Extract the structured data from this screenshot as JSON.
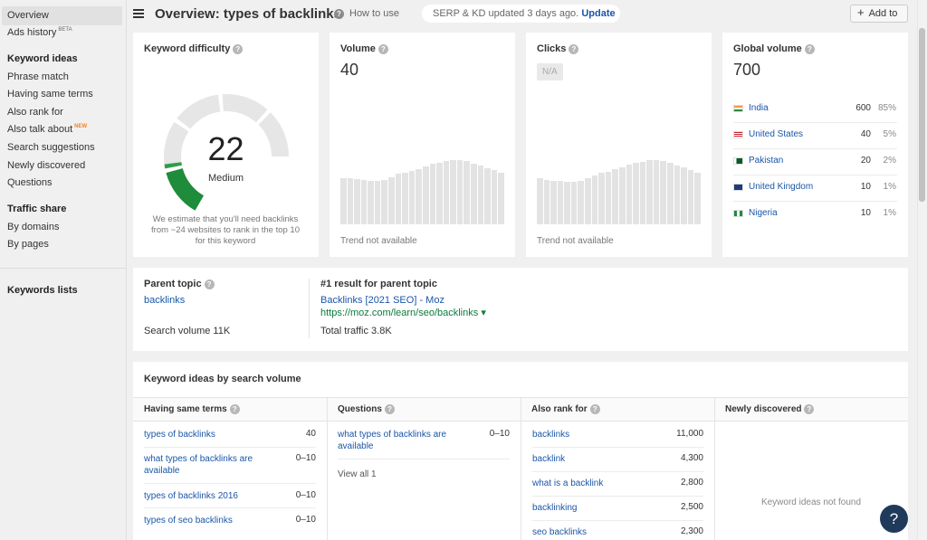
{
  "sidebar": {
    "overview": "Overview",
    "ads_history": "Ads history",
    "ads_history_badge": "BETA",
    "keyword_ideas_head": "Keyword ideas",
    "items": [
      {
        "label": "Phrase match"
      },
      {
        "label": "Having same terms"
      },
      {
        "label": "Also rank for"
      },
      {
        "label": "Also talk about",
        "badge": "NEW"
      },
      {
        "label": "Search suggestions"
      },
      {
        "label": "Newly discovered"
      },
      {
        "label": "Questions"
      }
    ],
    "traffic_share_head": "Traffic share",
    "traffic_items": [
      {
        "label": "By domains"
      },
      {
        "label": "By pages"
      }
    ],
    "keywords_lists": "Keywords lists"
  },
  "header": {
    "title": "Overview: types of backlinks",
    "how_to_use": "How to use",
    "serp_status": "SERP & KD updated 3 days ago.",
    "update_link": "Update",
    "add_to": "Add to"
  },
  "kd": {
    "title": "Keyword difficulty",
    "value": "22",
    "level": "Medium",
    "fraction": 0.22,
    "note": "We estimate that you'll need backlinks from ~24 websites to rank in the top 10 for this keyword",
    "color": "#2e9e48"
  },
  "volume": {
    "title": "Volume",
    "value": "40",
    "trend": "Trend not available",
    "bars": [
      0.62,
      0.62,
      0.61,
      0.6,
      0.58,
      0.58,
      0.6,
      0.63,
      0.68,
      0.7,
      0.72,
      0.74,
      0.78,
      0.82,
      0.83,
      0.85,
      0.87,
      0.86,
      0.85,
      0.82,
      0.79,
      0.76,
      0.73,
      0.7
    ]
  },
  "clicks": {
    "title": "Clicks",
    "value": "N/A",
    "trend": "Trend not available",
    "bars": [
      0.62,
      0.6,
      0.59,
      0.58,
      0.57,
      0.57,
      0.59,
      0.62,
      0.66,
      0.69,
      0.71,
      0.74,
      0.77,
      0.81,
      0.83,
      0.84,
      0.86,
      0.86,
      0.85,
      0.83,
      0.79,
      0.77,
      0.73,
      0.7
    ]
  },
  "global_volume": {
    "title": "Global volume",
    "value": "700",
    "countries": [
      {
        "name": "India",
        "volume": "600",
        "pct": "85%",
        "flag": "india-flag"
      },
      {
        "name": "United States",
        "volume": "40",
        "pct": "5%",
        "flag": "us-flag"
      },
      {
        "name": "Pakistan",
        "volume": "20",
        "pct": "2%",
        "flag": "pakistan-flag"
      },
      {
        "name": "United Kingdom",
        "volume": "10",
        "pct": "1%",
        "flag": "uk-flag"
      },
      {
        "name": "Nigeria",
        "volume": "10",
        "pct": "1%",
        "flag": "nigeria-flag"
      }
    ]
  },
  "parent_topic": {
    "title": "Parent topic",
    "keyword": "backlinks",
    "search_volume": "Search volume 11K",
    "result_title": "#1 result for parent topic",
    "result_link": "Backlinks [2021 SEO] - Moz",
    "result_url": "https://moz.com/learn/seo/backlinks",
    "total_traffic": "Total traffic 3.8K"
  },
  "keyword_ideas": {
    "title": "Keyword ideas by search volume",
    "columns": [
      {
        "head": "Having same terms",
        "rows": [
          {
            "kw": "types of backlinks",
            "val": "40"
          },
          {
            "kw": "what types of backlinks are available",
            "val": "0–10"
          },
          {
            "kw": "types of backlinks 2016",
            "val": "0–10"
          },
          {
            "kw": "types of seo backlinks",
            "val": "0–10"
          }
        ]
      },
      {
        "head": "Questions",
        "rows": [
          {
            "kw": "what types of backlinks are available",
            "val": "0–10"
          }
        ],
        "view_all": "View all 1"
      },
      {
        "head": "Also rank for",
        "rows": [
          {
            "kw": "backlinks",
            "val": "11,000"
          },
          {
            "kw": "backlink",
            "val": "4,300"
          },
          {
            "kw": "what is a backlink",
            "val": "2,800"
          },
          {
            "kw": "backlinking",
            "val": "2,500"
          },
          {
            "kw": "seo backlinks",
            "val": "2,300"
          }
        ]
      },
      {
        "head": "Newly discovered",
        "empty": "Keyword ideas not found"
      }
    ]
  },
  "help_fab": "?"
}
